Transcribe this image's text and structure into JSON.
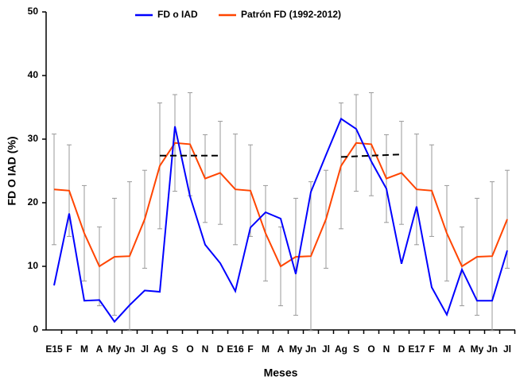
{
  "chart_data": {
    "type": "line",
    "y_label": "FD O IAD (%)",
    "x_label": "Meses",
    "categories": [
      "E15",
      "F",
      "M",
      "A",
      "My",
      "Jn",
      "Jl",
      "Ag",
      "S",
      "O",
      "N",
      "D",
      "E16",
      "F",
      "M",
      "A",
      "My",
      "Jn",
      "Jl",
      "Ag",
      "S",
      "O",
      "N",
      "D",
      "E17",
      "F",
      "M",
      "A",
      "My",
      "Jn",
      "Jl"
    ],
    "series": [
      {
        "name": "FD o IAD",
        "color": "#0000ff",
        "values": [
          7,
          18.3,
          4.6,
          4.7,
          1.3,
          3.9,
          6.2,
          6.0,
          32,
          21,
          13.4,
          10.5,
          6.1,
          16.1,
          18.5,
          17.5,
          8.8,
          21.7,
          27.5,
          33.2,
          31.6,
          26.5,
          22.2,
          10.4,
          19.4,
          6.7,
          2.4,
          9.5,
          4.6,
          4.6,
          12.5
        ]
      },
      {
        "name": "Patrón FD (1992-2012)",
        "color": "#ff4500",
        "values": [
          22.1,
          21.9,
          15.2,
          10.0,
          11.5,
          11.6,
          17.4,
          25.8,
          29.4,
          29.2,
          23.8,
          24.7,
          22.1,
          21.9,
          15.2,
          10.0,
          11.5,
          11.6,
          17.4,
          25.8,
          29.4,
          29.2,
          23.8,
          24.7,
          22.1,
          21.9,
          15.2,
          10.0,
          11.5,
          11.6,
          17.4
        ],
        "errors": [
          8.7,
          7.2,
          7.5,
          6.2,
          9.2,
          11.7,
          7.7,
          9.9,
          7.6,
          8.1,
          6.9,
          8.1,
          8.7,
          7.2,
          7.5,
          6.2,
          9.2,
          11.7,
          7.7,
          9.9,
          7.6,
          8.1,
          6.9,
          8.1,
          8.7,
          7.2,
          7.5,
          6.2,
          9.2,
          11.7,
          7.7
        ],
        "error_color": "#999999"
      }
    ],
    "reference_lines": [
      {
        "x_start": 7,
        "x_end": 11,
        "y_start": 27.4,
        "y_end": 27.4
      },
      {
        "x_start": 19,
        "x_end": 23,
        "y_start": 27.2,
        "y_end": 27.6
      }
    ],
    "ylim": [
      0,
      50
    ],
    "yticks": [
      0,
      10,
      20,
      30,
      40,
      50
    ]
  }
}
